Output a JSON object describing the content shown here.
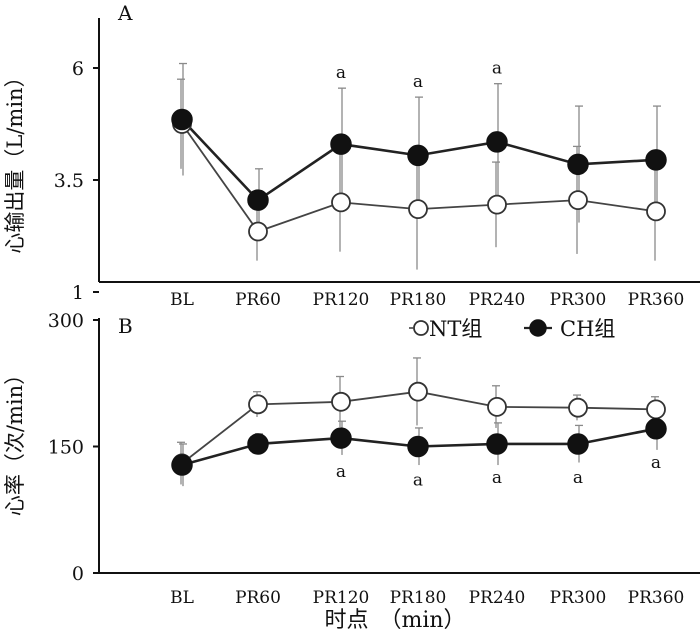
{
  "chart_data": [
    {
      "panel": "A",
      "type": "line",
      "ylabel": "心输出量（L/min）",
      "yticks": [
        "1",
        "3.5",
        "6"
      ],
      "ylim": [
        1,
        7
      ],
      "categories": [
        "BL",
        "PR60",
        "PR120",
        "PR180",
        "PR240",
        "PR300",
        "PR360"
      ],
      "series": [
        {
          "name": "NT组",
          "marker": "open",
          "values": [
            4.75,
            2.35,
            3.0,
            2.85,
            2.95,
            3.05,
            2.8
          ],
          "err": [
            1.0,
            0.65,
            1.1,
            1.35,
            0.95,
            1.2,
            1.1
          ]
        },
        {
          "name": "CH组",
          "marker": "filled",
          "values": [
            4.85,
            3.05,
            4.3,
            4.05,
            4.35,
            3.85,
            3.95
          ],
          "err": [
            1.25,
            0.7,
            1.25,
            1.3,
            1.3,
            1.3,
            1.2
          ]
        }
      ],
      "annotations": [
        {
          "category": "PR120",
          "text": "a"
        },
        {
          "category": "PR180",
          "text": "a"
        },
        {
          "category": "PR240",
          "text": "a"
        }
      ]
    },
    {
      "panel": "B",
      "type": "line",
      "ylabel": "心率（次/min）",
      "yticks": [
        "0",
        "150",
        "300"
      ],
      "ylim": [
        0,
        300
      ],
      "categories": [
        "BL",
        "PR60",
        "PR120",
        "PR180",
        "PR240",
        "PR300",
        "PR360"
      ],
      "xlabel": "时点　（min）",
      "series": [
        {
          "name": "NT组",
          "marker": "open",
          "values": [
            130,
            200,
            203,
            215,
            197,
            196,
            194
          ],
          "err": [
            25,
            15,
            30,
            40,
            25,
            15,
            15
          ]
        },
        {
          "name": "CH组",
          "marker": "filled",
          "values": [
            128,
            153,
            160,
            150,
            153,
            153,
            171
          ],
          "err": [
            25,
            12,
            20,
            22,
            25,
            22,
            25
          ]
        }
      ],
      "annotations": [
        {
          "category": "PR120",
          "text": "a"
        },
        {
          "category": "PR180",
          "text": "a"
        },
        {
          "category": "PR240",
          "text": "a"
        },
        {
          "category": "PR300",
          "text": "a"
        },
        {
          "category": "PR360",
          "text": "a"
        }
      ]
    }
  ],
  "legend": {
    "nt": "NT组",
    "ch": "CH组"
  }
}
